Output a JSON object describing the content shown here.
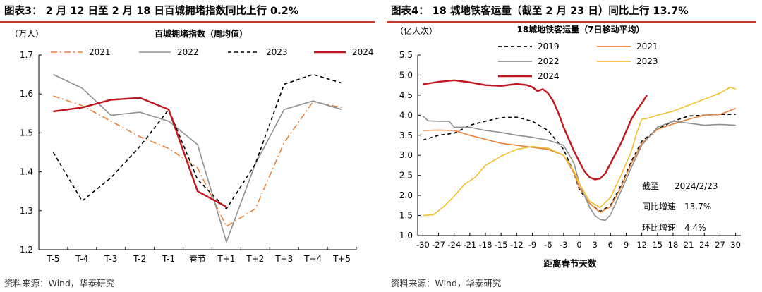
{
  "left": {
    "fig_title": "图表3： 2 月 12 日至 2 月 18 日百城拥堵指数同比上行 0.2%",
    "source": "资料来源：Wind，华泰研究",
    "chart_data": {
      "type": "line",
      "title": "百城拥堵指数（周均值）",
      "unit_label": "（万人）",
      "ylim": [
        1.2,
        1.7
      ],
      "yticks": [
        "1.7",
        "1.6",
        "1.5",
        "1.4",
        "1.3",
        "1.2"
      ],
      "ytick_values": [
        1.7,
        1.6,
        1.5,
        1.4,
        1.3,
        1.2
      ],
      "categories": [
        "T-5",
        "T-4",
        "T-3",
        "T-2",
        "T-1",
        "春节",
        "T+1",
        "T+2",
        "T+3",
        "T+4",
        "T+5"
      ],
      "series": [
        {
          "name": "2021",
          "color": "#e8823a",
          "style": "dashdot",
          "values": [
            1.595,
            1.57,
            1.53,
            1.49,
            1.46,
            1.41,
            1.26,
            1.305,
            1.475,
            1.58,
            1.565
          ]
        },
        {
          "name": "2022",
          "color": "#909090",
          "style": "solid",
          "values": [
            1.65,
            1.615,
            1.545,
            1.553,
            1.53,
            1.47,
            1.22,
            1.42,
            1.56,
            1.582,
            1.56
          ]
        },
        {
          "name": "2023",
          "color": "#000000",
          "style": "dashed",
          "values": [
            1.45,
            1.325,
            1.385,
            1.465,
            1.56,
            1.38,
            1.305,
            1.42,
            1.625,
            1.65,
            1.628
          ]
        },
        {
          "name": "2024",
          "color": "#c0171f",
          "style": "solid",
          "values": [
            1.555,
            1.565,
            1.585,
            1.59,
            1.56,
            1.35,
            1.31,
            null,
            null,
            null,
            null
          ]
        }
      ]
    }
  },
  "right": {
    "fig_title": "图表4： 18 城地铁客运量（截至 2 月 23 日）同比上行 13.7%",
    "source": "资料来源：Wind，华泰研究",
    "chart_data": {
      "type": "line",
      "title": "18城地铁客运量（7日移动平均）",
      "unit_label": "（亿人次）",
      "xlabel": "距离春节天数",
      "ylim": [
        1.0,
        5.5
      ],
      "yticks": [
        "5.5",
        "5.0",
        "4.5",
        "4.0",
        "3.5",
        "3.0",
        "2.5",
        "2.0",
        "1.5",
        "1.0"
      ],
      "ytick_values": [
        5.5,
        5.0,
        4.5,
        4.0,
        3.5,
        3.0,
        2.5,
        2.0,
        1.5,
        1.0
      ],
      "xlim": [
        -31,
        31
      ],
      "xticks": [
        "-30",
        "-27",
        "-24",
        "-21",
        "-18",
        "-15",
        "-12",
        "-9",
        "-6",
        "-3",
        "0",
        "3",
        "6",
        "9",
        "12",
        "15",
        "18",
        "21",
        "24",
        "27",
        "30"
      ],
      "xtick_values": [
        -30,
        -27,
        -24,
        -21,
        -18,
        -15,
        -12,
        -9,
        -6,
        -3,
        0,
        3,
        6,
        9,
        12,
        15,
        18,
        21,
        24,
        27,
        30
      ],
      "annotations": {
        "label_date": "截至",
        "date": "2024/2/23",
        "label_yoy": "同比增速",
        "yoy": "13.7%",
        "label_mom": "环比增速",
        "mom": "4.4%"
      },
      "series": [
        {
          "name": "2019",
          "color": "#000000",
          "style": "dashed",
          "x": [
            -30,
            -27,
            -24,
            -21,
            -18,
            -15,
            -12,
            -9,
            -6,
            -3,
            -1,
            0,
            2,
            4,
            6,
            8,
            10,
            12,
            15,
            18,
            21,
            24,
            27,
            30
          ],
          "y": [
            3.38,
            3.5,
            3.55,
            3.75,
            3.85,
            3.94,
            3.95,
            3.85,
            3.62,
            3.15,
            2.55,
            2.15,
            1.8,
            1.6,
            1.75,
            2.25,
            2.85,
            3.35,
            3.65,
            3.85,
            3.98,
            4.0,
            4.02,
            4.02
          ]
        },
        {
          "name": "2021",
          "color": "#e8823a",
          "style": "solid",
          "x": [
            -30,
            -27,
            -24,
            -21,
            -18,
            -15,
            -12,
            -9,
            -6,
            -3,
            -1,
            0,
            2,
            4,
            6,
            8,
            10,
            12,
            15,
            18,
            21,
            24,
            27,
            30
          ],
          "y": [
            3.62,
            3.63,
            3.62,
            3.5,
            3.4,
            3.3,
            3.25,
            3.2,
            3.15,
            3.0,
            2.55,
            2.2,
            1.8,
            1.58,
            1.72,
            2.2,
            2.8,
            3.3,
            3.65,
            3.78,
            3.9,
            4.0,
            4.02,
            4.17
          ]
        },
        {
          "name": "2022",
          "color": "#909090",
          "style": "solid",
          "x": [
            -30,
            -29,
            -27,
            -25,
            -24,
            -21,
            -18,
            -15,
            -12,
            -9,
            -6,
            -3,
            -1,
            0,
            2,
            3,
            4,
            5,
            6,
            8,
            10,
            12,
            15,
            18,
            21,
            24,
            27,
            30
          ],
          "y": [
            3.98,
            3.86,
            3.85,
            3.85,
            3.7,
            3.7,
            3.62,
            3.57,
            3.5,
            3.45,
            3.38,
            3.25,
            2.8,
            2.3,
            1.7,
            1.5,
            1.4,
            1.38,
            1.52,
            2.1,
            2.7,
            3.25,
            3.7,
            3.85,
            3.8,
            3.75,
            3.77,
            3.75
          ]
        },
        {
          "name": "2023",
          "color": "#f1c232",
          "style": "solid",
          "x": [
            -30,
            -28,
            -26,
            -24,
            -22,
            -20,
            -18,
            -15,
            -12,
            -9,
            -6,
            -3,
            -1,
            0,
            2,
            4,
            6,
            8,
            10,
            11,
            12,
            13,
            15,
            18,
            21,
            24,
            27,
            29,
            30
          ],
          "y": [
            1.5,
            1.52,
            1.72,
            1.98,
            2.28,
            2.45,
            2.75,
            2.98,
            3.15,
            3.22,
            3.18,
            3.0,
            2.6,
            2.3,
            1.85,
            1.7,
            1.95,
            2.5,
            3.1,
            3.55,
            3.9,
            3.92,
            4.0,
            4.1,
            4.25,
            4.4,
            4.55,
            4.7,
            4.65
          ]
        },
        {
          "name": "2024",
          "color": "#c0171f",
          "style": "solid",
          "x": [
            -30,
            -27,
            -24,
            -21,
            -18,
            -15,
            -12,
            -10,
            -9,
            -8,
            -7,
            -6,
            -5,
            -4,
            -3,
            -2,
            -1,
            0,
            1,
            2,
            3,
            4,
            5,
            6,
            7,
            8,
            9,
            10,
            11,
            12,
            13
          ],
          "y": [
            4.77,
            4.83,
            4.87,
            4.82,
            4.75,
            4.73,
            4.78,
            4.75,
            4.7,
            4.6,
            4.65,
            4.55,
            4.35,
            4.05,
            3.7,
            3.4,
            3.1,
            2.85,
            2.6,
            2.45,
            2.4,
            2.42,
            2.55,
            2.8,
            3.05,
            3.3,
            3.6,
            3.9,
            4.12,
            4.3,
            4.5
          ]
        }
      ]
    }
  }
}
